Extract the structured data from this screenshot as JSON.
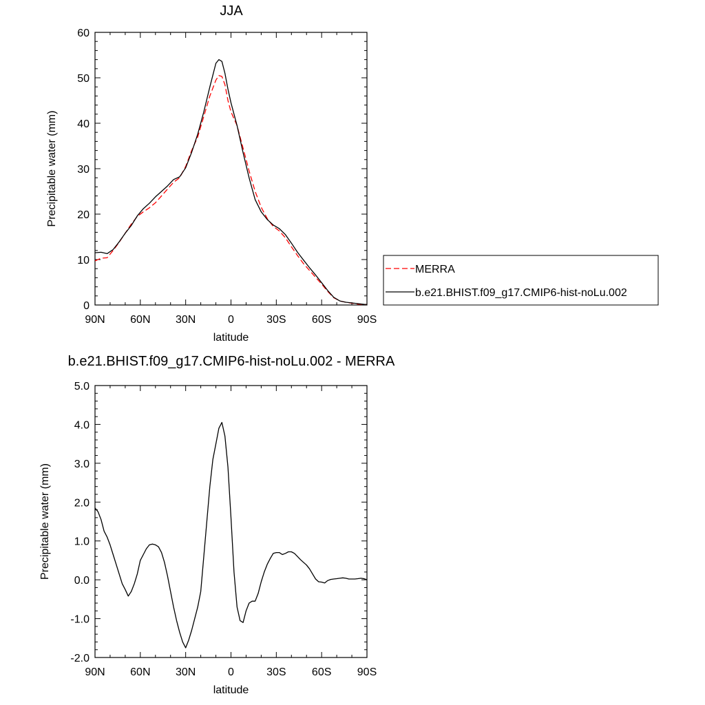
{
  "chart_data": [
    {
      "type": "line",
      "title": "JJA",
      "xlabel": "latitude",
      "ylabel": "Precipitable water (mm)",
      "xlim": [
        90,
        -90
      ],
      "ylim": [
        0,
        60
      ],
      "xticks": [
        90,
        60,
        30,
        0,
        -30,
        -60,
        -90
      ],
      "xtick_labels": [
        "90N",
        "60N",
        "30N",
        "0",
        "30S",
        "60S",
        "90S"
      ],
      "yticks": [
        0,
        10,
        20,
        30,
        40,
        50,
        60
      ],
      "ytick_labels": [
        "0",
        "10",
        "20",
        "30",
        "40",
        "50",
        "60"
      ],
      "legend_position": "right",
      "series": [
        {
          "name": "MERRA",
          "color": "#ff0000",
          "dash": "dashed",
          "x": [
            90,
            86,
            82,
            78,
            74,
            70,
            66,
            62,
            58,
            54,
            50,
            46,
            42,
            38,
            34,
            30,
            26,
            22,
            18,
            14,
            10,
            8,
            6,
            4,
            2,
            0,
            -4,
            -8,
            -12,
            -16,
            -20,
            -24,
            -28,
            -32,
            -36,
            -40,
            -44,
            -48,
            -52,
            -56,
            -60,
            -64,
            -68,
            -72,
            -76,
            -80,
            -84,
            -88,
            -90
          ],
          "y": [
            9.7,
            10.3,
            10.4,
            12.0,
            13.8,
            15.8,
            17.8,
            19.5,
            20.5,
            21.4,
            22.5,
            24.0,
            25.5,
            27.0,
            28.0,
            30.5,
            34.0,
            37.0,
            41.5,
            46.0,
            49.5,
            50.5,
            50.3,
            48.5,
            45.0,
            42.5,
            39.5,
            34.5,
            29.5,
            25.0,
            21.5,
            19.0,
            17.3,
            16.3,
            14.8,
            12.8,
            10.9,
            9.1,
            7.6,
            6.1,
            4.6,
            3.0,
            1.6,
            0.9,
            0.6,
            0.4,
            0.2,
            0.1,
            0.1
          ]
        },
        {
          "name": "b.e21.BHIST.f09_g17.CMIP6-hist-noLu.002",
          "color": "#000000",
          "dash": "solid",
          "x": [
            90,
            86,
            82,
            78,
            74,
            70,
            66,
            62,
            58,
            54,
            50,
            46,
            42,
            38,
            34,
            30,
            26,
            22,
            18,
            14,
            10,
            8,
            6,
            4,
            2,
            0,
            -4,
            -8,
            -12,
            -16,
            -20,
            -24,
            -28,
            -32,
            -36,
            -40,
            -44,
            -48,
            -52,
            -56,
            -60,
            -64,
            -68,
            -72,
            -76,
            -80,
            -84,
            -88,
            -90
          ],
          "y": [
            11.5,
            11.6,
            11.3,
            12.2,
            13.9,
            15.8,
            17.5,
            19.6,
            21.2,
            22.4,
            23.8,
            25.0,
            26.2,
            27.6,
            28.2,
            30.2,
            33.6,
            37.6,
            42.5,
            48.0,
            53.2,
            54.0,
            53.6,
            51.0,
            47.5,
            44.5,
            39.5,
            33.5,
            28.0,
            23.2,
            20.5,
            18.8,
            17.6,
            16.8,
            15.5,
            13.6,
            11.6,
            9.9,
            8.2,
            6.6,
            4.9,
            3.2,
            1.7,
            0.9,
            0.6,
            0.45,
            0.3,
            0.15,
            0.1
          ]
        }
      ]
    },
    {
      "type": "line",
      "title": "b.e21.BHIST.f09_g17.CMIP6-hist-noLu.002 - MERRA",
      "xlabel": "latitude",
      "ylabel": "Precipitable water (mm)",
      "xlim": [
        90,
        -90
      ],
      "ylim": [
        -2.0,
        5.0
      ],
      "xticks": [
        90,
        60,
        30,
        0,
        -30,
        -60,
        -90
      ],
      "xtick_labels": [
        "90N",
        "60N",
        "30N",
        "0",
        "30S",
        "60S",
        "90S"
      ],
      "yticks": [
        -2.0,
        -1.0,
        0.0,
        1.0,
        2.0,
        3.0,
        4.0,
        5.0
      ],
      "ytick_labels": [
        "-2.0",
        "-1.0",
        "0.0",
        "1.0",
        "2.0",
        "3.0",
        "4.0",
        "5.0"
      ],
      "series": [
        {
          "color": "#000000",
          "dash": "solid",
          "x": [
            90,
            88,
            86,
            84,
            82,
            80,
            78,
            76,
            74,
            72,
            70,
            68,
            66,
            64,
            62,
            60,
            58,
            56,
            54,
            52,
            50,
            48,
            46,
            44,
            42,
            40,
            38,
            36,
            34,
            32,
            30,
            28,
            26,
            24,
            22,
            20,
            18,
            16,
            14,
            12,
            10,
            8,
            6,
            4,
            2,
            0,
            -2,
            -4,
            -6,
            -8,
            -10,
            -12,
            -14,
            -16,
            -18,
            -20,
            -22,
            -24,
            -26,
            -28,
            -30,
            -32,
            -34,
            -36,
            -38,
            -40,
            -42,
            -44,
            -46,
            -48,
            -50,
            -52,
            -54,
            -56,
            -58,
            -60,
            -62,
            -64,
            -66,
            -68,
            -70,
            -72,
            -74,
            -76,
            -78,
            -80,
            -82,
            -84,
            -86,
            -88,
            -90
          ],
          "y": [
            1.85,
            1.75,
            1.55,
            1.25,
            1.1,
            0.9,
            0.65,
            0.4,
            0.15,
            -0.1,
            -0.25,
            -0.42,
            -0.3,
            -0.1,
            0.15,
            0.5,
            0.65,
            0.8,
            0.9,
            0.92,
            0.9,
            0.85,
            0.7,
            0.45,
            0.1,
            -0.3,
            -0.7,
            -1.05,
            -1.35,
            -1.6,
            -1.75,
            -1.55,
            -1.3,
            -1.0,
            -0.7,
            -0.3,
            0.6,
            1.5,
            2.4,
            3.1,
            3.5,
            3.9,
            4.05,
            3.7,
            2.9,
            1.6,
            0.2,
            -0.7,
            -1.05,
            -1.1,
            -0.8,
            -0.6,
            -0.55,
            -0.55,
            -0.35,
            -0.05,
            0.2,
            0.4,
            0.55,
            0.68,
            0.7,
            0.7,
            0.65,
            0.68,
            0.72,
            0.72,
            0.68,
            0.6,
            0.52,
            0.45,
            0.38,
            0.28,
            0.15,
            0.02,
            -0.05,
            -0.06,
            -0.08,
            -0.02,
            0.01,
            0.02,
            0.03,
            0.04,
            0.05,
            0.04,
            0.02,
            0.02,
            0.02,
            0.03,
            0.04,
            0.03,
            0.0
          ]
        }
      ]
    }
  ]
}
